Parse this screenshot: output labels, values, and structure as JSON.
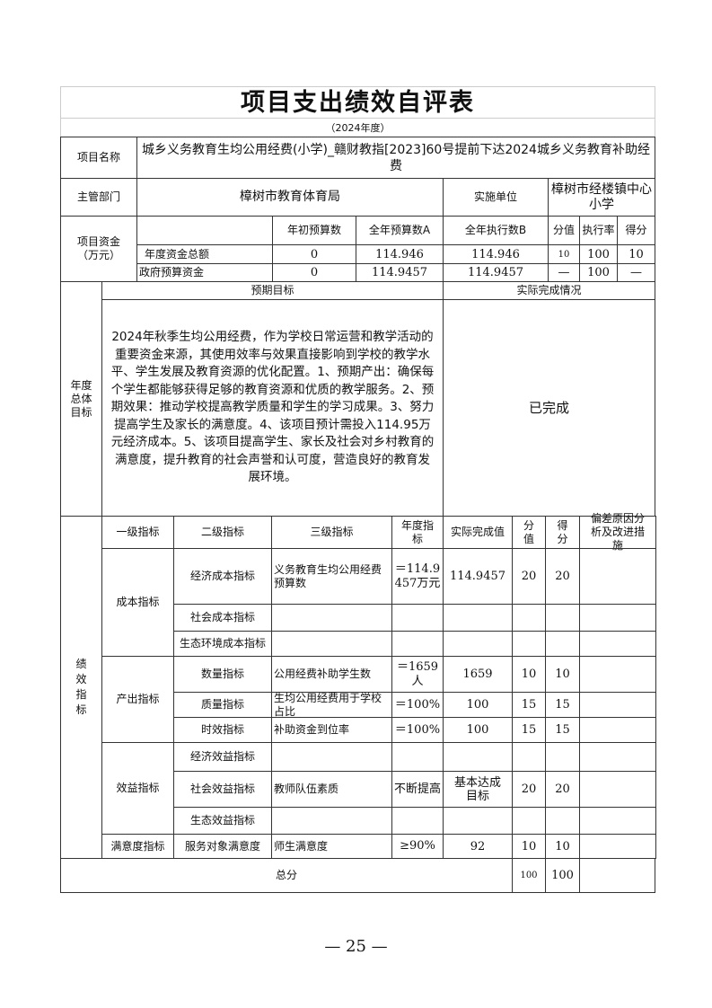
{
  "title": "项目支出绩效自评表",
  "year": "（2024年度）",
  "project": {
    "label": "项目名称",
    "value": "城乡义务教育生均公用经费(小学)_赣财教指[2023]60号提前下达2024城乡义务教育补助经费"
  },
  "dept": {
    "label": "主管部门",
    "value": "樟树市教育体育局",
    "impl_label": "实施单位",
    "impl_value": "樟树市经楼镇中心小学"
  },
  "funds": {
    "label": "项目资金（万元）",
    "headers": [
      "年初预算数",
      "全年预算数A",
      "全年执行数B",
      "分值",
      "执行率",
      "得分"
    ],
    "rows": [
      {
        "name": "年度资金总额",
        "initial": "0",
        "budget": "114.946",
        "executed": "114.946",
        "weight": "10",
        "rate": "100",
        "score": "10"
      },
      {
        "name": "政府预算资金",
        "initial": "0",
        "budget": "114.9457",
        "executed": "114.9457",
        "weight": "—",
        "rate": "100",
        "score": "—"
      }
    ]
  },
  "goals": {
    "label": "年度总体目标",
    "expected_header": "预期目标",
    "actual_header": "实际完成情况",
    "expected": "2024年秋季生均公用经费，作为学校日常运营和教学活动的重要资金来源，其使用效率与效果直接影响到学校的教学水平、学生发展及教育资源的优化配置。1、预期产出：确保每个学生都能够获得足够的教育资源和优质的教学服务。2、预期效果：推动学校提高教学质量和学生的学习成果。3、努力提高学生及家长的满意度。4、该项目预计需投入114.95万元经济成本。5、该项目提高学生、家长及社会对乡村教育的满意度，提升教育的社会声誉和认可度，营造良好的教育发展环境。",
    "actual": "已完成"
  },
  "perf": {
    "label": "绩效指标",
    "headers": [
      "一级指标",
      "二级指标",
      "三级指标",
      "年度指标",
      "实际完成值",
      "分值",
      "得分",
      "偏差原因分析及改进措施"
    ],
    "level1": [
      "成本指标",
      "产出指标",
      "效益指标",
      "满意度指标"
    ],
    "rows": [
      {
        "l2": "经济成本指标",
        "l3": "义务教育生均公用经费预算数",
        "target": "＝114.9457万元",
        "actual": "114.9457",
        "weight": "20",
        "score": "20"
      },
      {
        "l2": "社会成本指标"
      },
      {
        "l2": "生态环境成本指标"
      },
      {
        "l2": "数量指标",
        "l3": "公用经费补助学生数",
        "target": "＝1659人",
        "actual": "1659",
        "weight": "10",
        "score": "10"
      },
      {
        "l2": "质量指标",
        "l3": "生均公用经费用于学校占比",
        "target": "＝100%",
        "actual": "100",
        "weight": "15",
        "score": "15"
      },
      {
        "l2": "时效指标",
        "l3": "补助资金到位率",
        "target": "＝100%",
        "actual": "100",
        "weight": "15",
        "score": "15"
      },
      {
        "l2": "经济效益指标"
      },
      {
        "l2": "社会效益指标",
        "l3": "教师队伍素质",
        "target": "不断提高",
        "actual": "基本达成目标",
        "weight": "20",
        "score": "20"
      },
      {
        "l2": "生态效益指标"
      },
      {
        "l2": "服务对象满意度",
        "l3": "师生满意度",
        "target": "≥90%",
        "actual": "92",
        "weight": "10",
        "score": "10"
      }
    ],
    "total_label": "总分",
    "total_weight": "100",
    "total_score": "100"
  },
  "page_number": "— 25 —"
}
